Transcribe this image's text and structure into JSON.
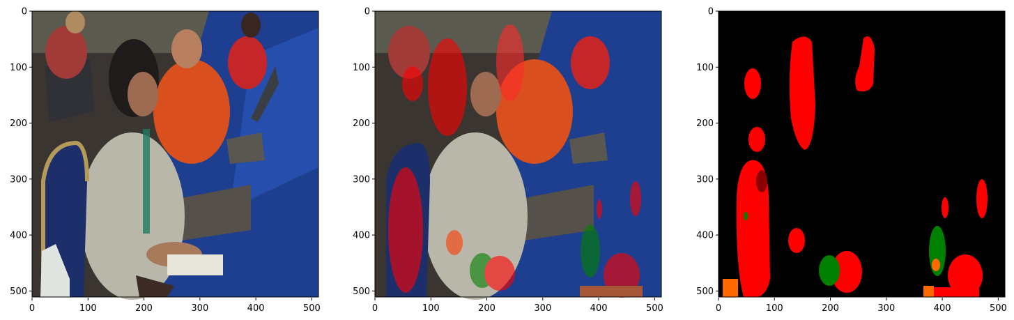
{
  "figure": {
    "panels": [
      {
        "name": "photo",
        "content": "original-photo",
        "x_ticks": [
          "0",
          "100",
          "200",
          "300",
          "400",
          "500"
        ],
        "y_ticks": [
          "0",
          "100",
          "200",
          "300",
          "400",
          "500"
        ]
      },
      {
        "name": "overlay",
        "content": "photo-with-segmentation-overlay",
        "x_ticks": [
          "0",
          "100",
          "200",
          "300",
          "400",
          "500"
        ],
        "y_ticks": [
          "0",
          "100",
          "200",
          "300",
          "400",
          "500"
        ]
      },
      {
        "name": "mask",
        "content": "segmentation-mask",
        "x_ticks": [
          "0",
          "100",
          "200",
          "300",
          "400",
          "500"
        ],
        "y_ticks": [
          "0",
          "100",
          "200",
          "300",
          "400",
          "500"
        ]
      }
    ],
    "image_extent": [
      0,
      512
    ],
    "colors": {
      "mask_background": "#000000",
      "class_red": "#ff0000",
      "class_green": "#008000",
      "class_orange": "#ff6a00",
      "class_darkred": "#8b0000",
      "tablecloth_blue": "#1e3f8f"
    }
  }
}
